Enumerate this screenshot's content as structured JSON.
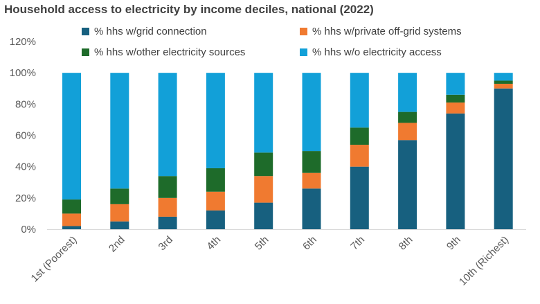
{
  "chart_data": {
    "type": "bar",
    "stacked": true,
    "title": "Household access to electricity by income deciles, national (2022)",
    "xlabel": "",
    "ylabel": "",
    "ylim": [
      0,
      120
    ],
    "yticks": [
      "0%",
      "20%",
      "40%",
      "60%",
      "80%",
      "100%",
      "120%"
    ],
    "ytick_values": [
      0,
      20,
      40,
      60,
      80,
      100,
      120
    ],
    "grid": false,
    "legend_position": "top",
    "categories": [
      "1st (Poorest)",
      "2nd",
      "3rd",
      "4th",
      "5th",
      "6th",
      "7th",
      "8th",
      "9th",
      "10th (Richest)"
    ],
    "series": [
      {
        "name": "% hhs w/grid connection",
        "color": "#17607f",
        "values": [
          2,
          5,
          8,
          12,
          17,
          26,
          40,
          57,
          74,
          90
        ]
      },
      {
        "name": "% hhs w/private off-grid systems",
        "color": "#f07a30",
        "values": [
          8,
          11,
          12,
          12,
          17,
          10,
          14,
          11,
          7,
          3
        ]
      },
      {
        "name": "% hhs w/other electricity sources",
        "color": "#1e6b2a",
        "values": [
          9,
          10,
          14,
          15,
          15,
          14,
          11,
          7,
          5,
          2
        ]
      },
      {
        "name": "% hhs w/o electricity access",
        "color": "#12a0d8",
        "values": [
          81,
          74,
          66,
          61,
          51,
          50,
          35,
          25,
          14,
          5
        ]
      }
    ]
  }
}
